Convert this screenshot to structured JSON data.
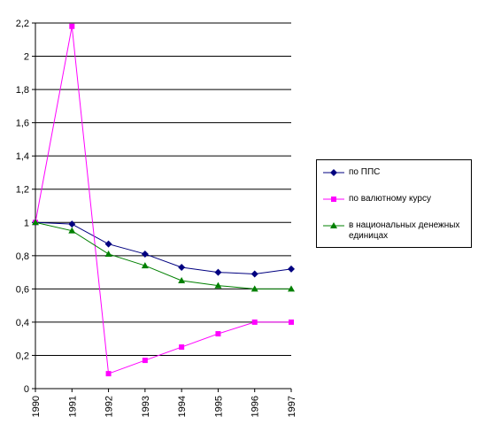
{
  "chart_data": {
    "type": "line",
    "title": "",
    "xlabel": "",
    "ylabel": "",
    "categories": [
      "1990",
      "1991",
      "1992",
      "1993",
      "1994",
      "1995",
      "1996",
      "1997"
    ],
    "ylim": [
      0,
      2.2
    ],
    "yticks": [
      "0",
      "0,2",
      "0,4",
      "0,6",
      "0,8",
      "1",
      "1,2",
      "1,4",
      "1,6",
      "1,8",
      "2",
      "2,2"
    ],
    "grid": true,
    "legend_position": "right",
    "series": [
      {
        "name": "по ППС",
        "color": "#000080",
        "marker": "diamond",
        "values": [
          1.0,
          0.99,
          0.87,
          0.81,
          0.73,
          0.7,
          0.69,
          0.72
        ]
      },
      {
        "name": "по валютному курсу",
        "color": "#ff00ff",
        "marker": "square",
        "values": [
          1.0,
          2.18,
          0.09,
          0.17,
          0.25,
          0.33,
          0.4,
          0.4
        ]
      },
      {
        "name": "в национальных денежных единицах",
        "color": "#008000",
        "marker": "triangle",
        "values": [
          1.0,
          0.95,
          0.81,
          0.74,
          0.65,
          0.62,
          0.6,
          0.6
        ]
      }
    ]
  }
}
